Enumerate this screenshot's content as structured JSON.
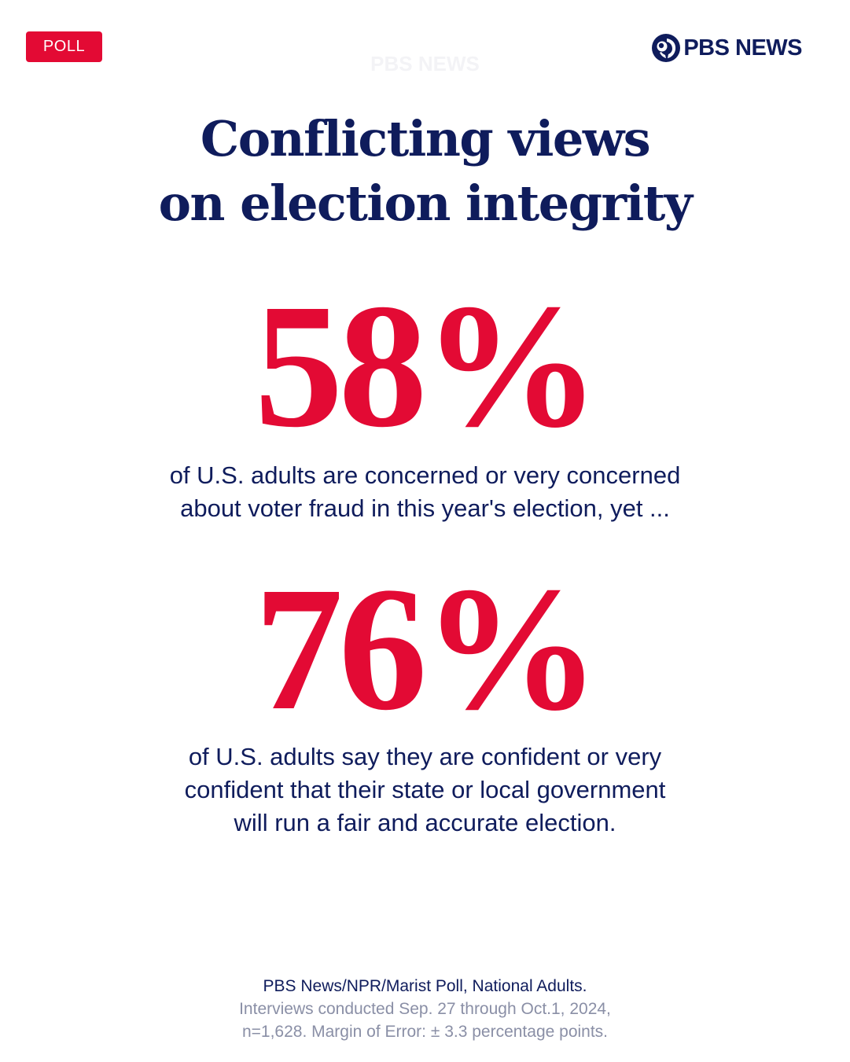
{
  "badge": {
    "label": "POLL"
  },
  "brand": {
    "logo_text": "PBS NEWS",
    "watermark": "PBS NEWS",
    "logo_icon": "pbs-head-icon"
  },
  "title": {
    "line1": "Conflicting views",
    "line2": "on election integrity"
  },
  "stat1": {
    "value": "58%",
    "line1": "of U.S. adults are concerned or very concerned",
    "line2": "about voter fraud in this year's election, yet ..."
  },
  "stat2": {
    "value": "76%",
    "line1": "of U.S. adults say they are confident or very",
    "line2": "confident that their state or local government",
    "line3": "will run a fair and accurate election."
  },
  "footer": {
    "source": "PBS News/NPR/Marist Poll, National Adults.",
    "line2": "Interviews conducted Sep. 27 through Oct.1, 2024,",
    "line3": "n=1,628. Margin of Error: ± 3.3 percentage points."
  },
  "colors": {
    "accent": "#e30a34",
    "navy": "#0f1c5c",
    "muted": "#8a8fa6"
  }
}
